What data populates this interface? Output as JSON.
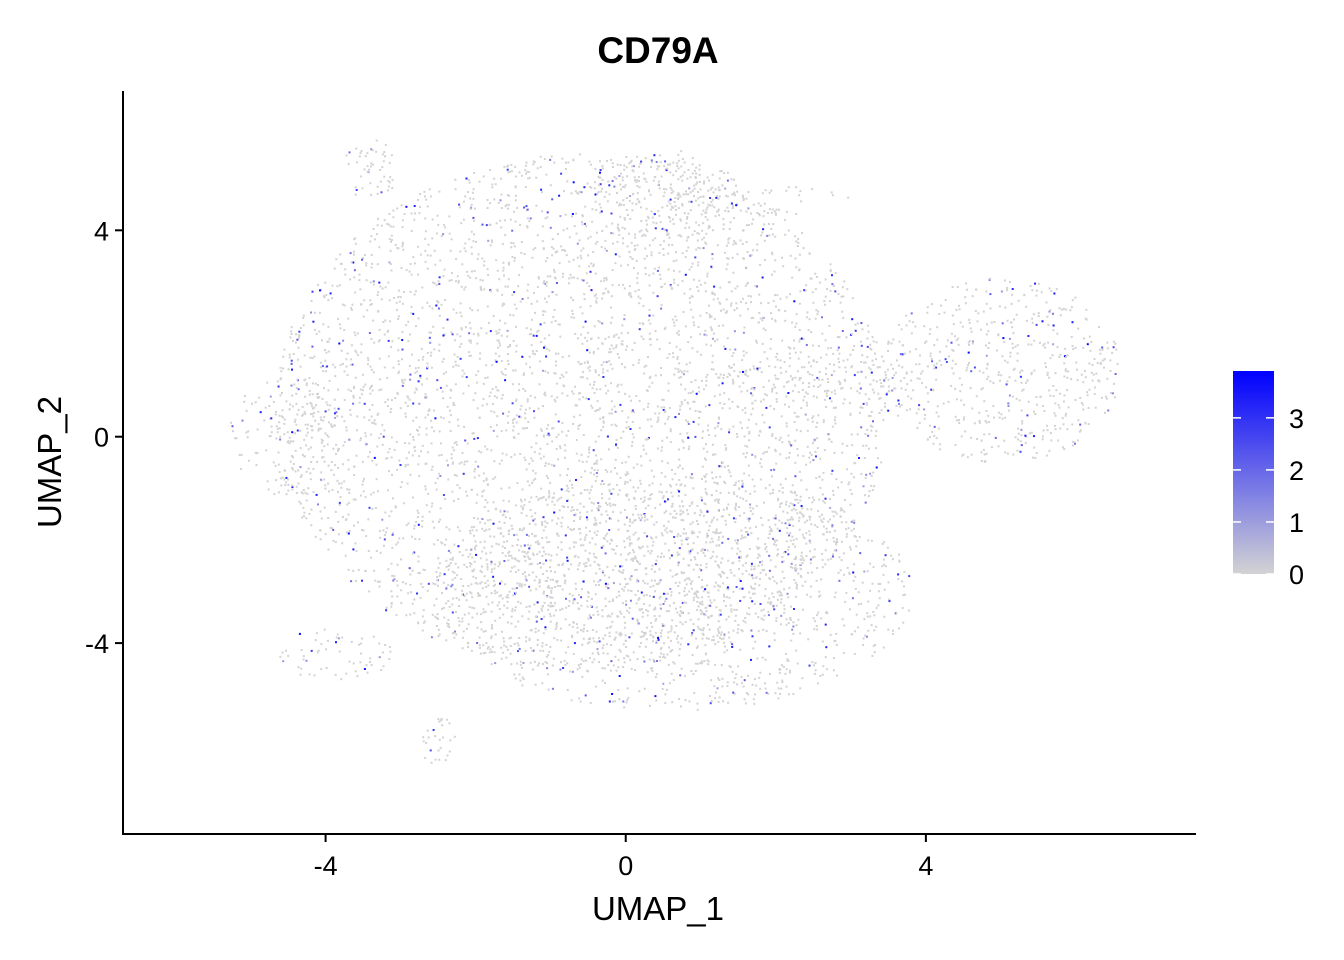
{
  "chart_data": {
    "type": "scatter",
    "title": "CD79A",
    "xlabel": "UMAP_1",
    "ylabel": "UMAP_2",
    "xlim": [
      -6.7,
      7.6
    ],
    "ylim": [
      -7.7,
      6.7
    ],
    "x_ticks": [
      -4,
      0,
      4
    ],
    "y_ticks": [
      -4,
      0,
      4
    ],
    "x_tick_labels": [
      "-4",
      "0",
      "4"
    ],
    "y_tick_labels": [
      "-4",
      "0",
      "4"
    ],
    "grid": false,
    "legend": {
      "placement": "right",
      "type": "colorbar",
      "range": [
        0,
        3.9
      ],
      "ticks": [
        0,
        1,
        2,
        3
      ],
      "tick_labels": [
        "0",
        "1",
        "2",
        "3"
      ],
      "low_color": "#d3d3d3",
      "high_color": "#0000ff"
    },
    "point_color_low": "#d3d3d3",
    "point_color_high": "#0000ff",
    "regions": [
      {
        "name": "main",
        "center": [
          -0.6,
          0.5
        ],
        "rx": 4.1,
        "ry": 5.0,
        "density": 0.78
      },
      {
        "name": "main-lower",
        "center": [
          0.6,
          -3.0
        ],
        "rx": 3.2,
        "ry": 2.3,
        "density": 0.7
      },
      {
        "name": "top-left",
        "center": [
          -3.4,
          5.2
        ],
        "rx": 0.4,
        "ry": 0.6,
        "density": 0.8
      },
      {
        "name": "top-center",
        "center": [
          0.5,
          4.7
        ],
        "rx": 1.0,
        "ry": 0.9,
        "density": 0.8
      },
      {
        "name": "top-right-arm",
        "center": [
          1.7,
          4.6
        ],
        "rx": 1.3,
        "ry": 0.3,
        "density": 0.5
      },
      {
        "name": "right-cluster",
        "center": [
          5.0,
          1.3
        ],
        "rx": 1.6,
        "ry": 1.8,
        "density": 0.75
      },
      {
        "name": "bridge",
        "center": [
          2.5,
          1.2
        ],
        "rx": 1.3,
        "ry": 0.5,
        "density": 0.5
      },
      {
        "name": "bottom-left",
        "center": [
          -3.9,
          -4.2
        ],
        "rx": 0.8,
        "ry": 0.5,
        "density": 0.6
      },
      {
        "name": "bottom-island",
        "center": [
          -2.5,
          -5.9
        ],
        "rx": 0.25,
        "ry": 0.5,
        "density": 0.9
      },
      {
        "name": "left-wing",
        "center": [
          -4.5,
          0.0
        ],
        "rx": 0.8,
        "ry": 1.2,
        "density": 0.5
      }
    ]
  }
}
